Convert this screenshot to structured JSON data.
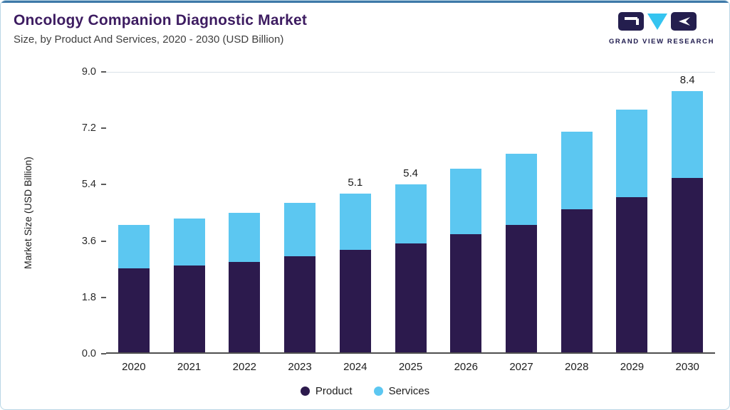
{
  "header": {
    "title": "Oncology Companion Diagnostic Market",
    "subtitle": "Size, by Product And Services, 2020 - 2030 (USD Billion)",
    "logo_text": "GRAND VIEW RESEARCH"
  },
  "chart_data": {
    "type": "bar",
    "stacked": true,
    "categories": [
      "2020",
      "2021",
      "2022",
      "2023",
      "2024",
      "2025",
      "2026",
      "2027",
      "2028",
      "2029",
      "2030"
    ],
    "series": [
      {
        "name": "Product",
        "color": "#2c1a4d",
        "values": [
          2.7,
          2.8,
          2.9,
          3.1,
          3.3,
          3.5,
          3.8,
          4.1,
          4.6,
          5.0,
          5.6
        ]
      },
      {
        "name": "Services",
        "color": "#5cc7f1",
        "values": [
          1.4,
          1.5,
          1.6,
          1.7,
          1.8,
          1.9,
          2.1,
          2.3,
          2.5,
          2.8,
          2.8
        ]
      }
    ],
    "value_labels": {
      "2024": "5.1",
      "2025": "5.4",
      "2030": "8.4"
    },
    "ylabel": "Market Size (USD Billion)",
    "yticks": [
      0,
      1.8,
      3.6,
      5.4,
      7.2,
      9
    ],
    "ylim": [
      0,
      9
    ],
    "legend": [
      "Product",
      "Services"
    ],
    "grid": "top-line-only",
    "legend_position": "bottom-center"
  }
}
